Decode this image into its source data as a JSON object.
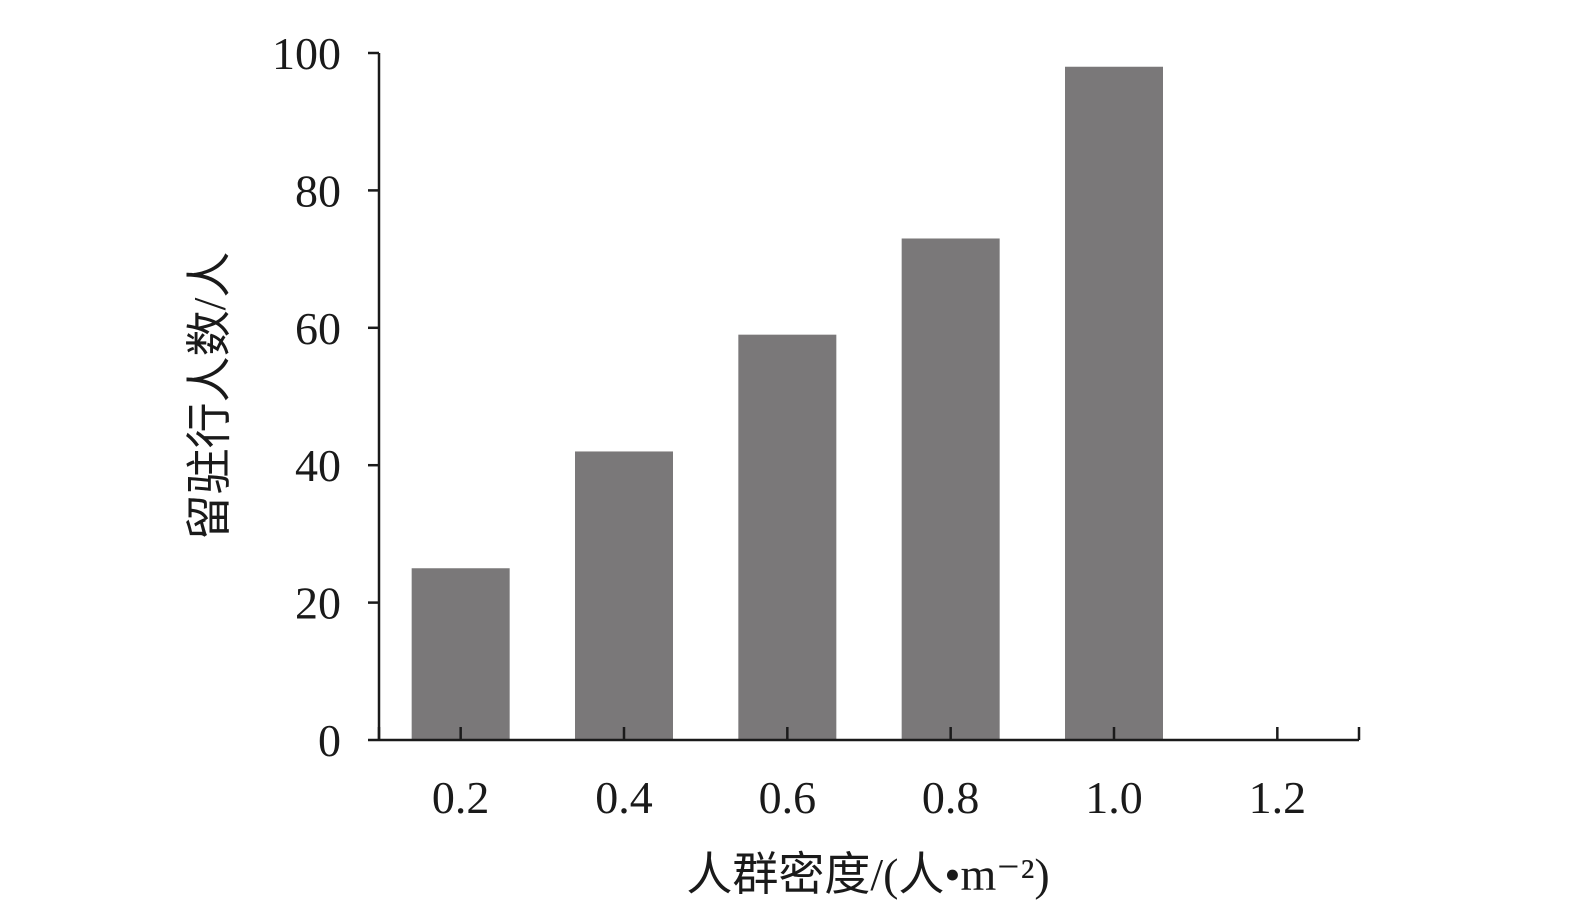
{
  "chart_data": {
    "type": "bar",
    "x": [
      0.2,
      0.4,
      0.6,
      0.8,
      1.0
    ],
    "values": [
      25,
      42,
      59,
      73,
      98
    ],
    "x_tick_labels": [
      "0.2",
      "0.4",
      "0.6",
      "0.8",
      "1.0",
      "1.2"
    ],
    "y_tick_labels": [
      "0",
      "20",
      "40",
      "60",
      "80",
      "100"
    ],
    "xlabel": "人群密度/(人•m⁻²)",
    "ylabel": "留驻行人数/人",
    "xlim": [
      0.1,
      1.3
    ],
    "ylim": [
      0,
      100
    ],
    "grid": false,
    "bar_color": "#7a7879"
  }
}
